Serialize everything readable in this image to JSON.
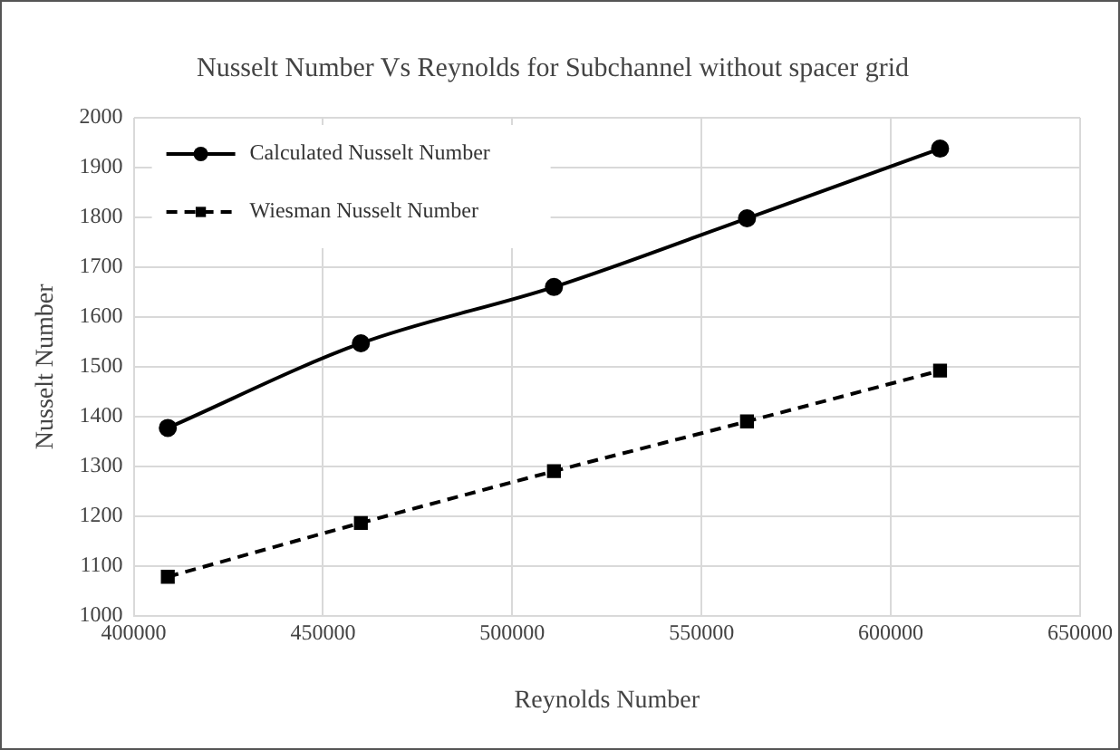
{
  "chart_data": {
    "type": "line",
    "title": "Nusselt Number Vs Reynolds for Subchannel without spacer grid",
    "xlabel": "Reynolds Number",
    "ylabel": "Nusselt Number",
    "x": [
      409000,
      460000,
      511000,
      562000,
      613000
    ],
    "series": [
      {
        "name": "Calculated Nusselt Number",
        "color": "#000000",
        "marker": "circle",
        "line_style": "solid",
        "values": [
          1377,
          1547,
          1660,
          1798,
          1938
        ]
      },
      {
        "name": "Wiesman Nusselt Number",
        "color": "#000000",
        "marker": "square",
        "line_style": "dashed",
        "values": [
          1078,
          1186,
          1290,
          1390,
          1492
        ]
      }
    ],
    "xlim": [
      400000,
      650000
    ],
    "xticks": [
      400000,
      450000,
      500000,
      550000,
      600000,
      650000
    ],
    "ylim": [
      1000,
      2000
    ],
    "yticks": [
      1000,
      1100,
      1200,
      1300,
      1400,
      1500,
      1600,
      1700,
      1800,
      1900,
      2000
    ],
    "grid": true,
    "legend": "top left"
  }
}
